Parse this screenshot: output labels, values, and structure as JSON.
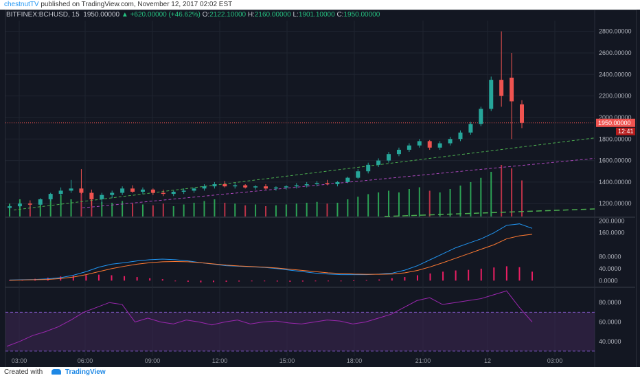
{
  "publication": {
    "author": "chestnutTV",
    "text": "published on TradingView.com, November 12, 2017 02:02 EST"
  },
  "header": {
    "symbol": "BITFINEX:BCHUSD, 15",
    "price": "1950.00000",
    "arrow": "▲",
    "change": "+620.00000 (+46.62%)",
    "o_label": "O:",
    "o_value": "2122.10000",
    "h_label": "H:",
    "h_value": "2160.00000",
    "l_label": "L:",
    "l_value": "1901.10000",
    "c_label": "C:",
    "c_value": "1950.00000"
  },
  "footer": {
    "created_with": "Created with",
    "brand": "TradingView"
  },
  "colors": {
    "up": "#26a69a",
    "down": "#ef5350",
    "vol_up": "#33c561",
    "vol_down": "#e53951",
    "macd_line": "#2196f3",
    "signal_line": "#ff7a32",
    "hist": "#e91e63",
    "rsi_line": "#9c27b0",
    "rsi_band": "#3b2450",
    "last_price_tag": "#ef5350"
  },
  "chart_data": [
    {
      "type": "candlestick",
      "title": "BITFINEX:BCHUSD, 15",
      "ylim": [
        1080,
        2900
      ],
      "yticks": [
        "1200.00000",
        "1400.00000",
        "1600.00000",
        "1800.00000",
        "2000.00000",
        "2200.00000",
        "2400.00000",
        "2600.00000",
        "2800.00000"
      ],
      "last_price_label": "1950.00000",
      "countdown_label": "12:41",
      "last_price": 1950,
      "candles": [
        [
          1160,
          1190,
          1140,
          1175
        ],
        [
          1175,
          1210,
          1165,
          1200
        ],
        [
          1200,
          1230,
          1180,
          1190
        ],
        [
          1190,
          1250,
          1180,
          1240
        ],
        [
          1240,
          1300,
          1220,
          1290
        ],
        [
          1290,
          1350,
          1270,
          1320
        ],
        [
          1320,
          1420,
          1300,
          1340
        ],
        [
          1340,
          1520,
          1290,
          1300
        ],
        [
          1300,
          1330,
          1180,
          1240
        ],
        [
          1240,
          1300,
          1200,
          1280
        ],
        [
          1280,
          1320,
          1250,
          1300
        ],
        [
          1300,
          1360,
          1280,
          1340
        ],
        [
          1340,
          1370,
          1300,
          1310
        ],
        [
          1310,
          1350,
          1290,
          1330
        ],
        [
          1330,
          1340,
          1280,
          1300
        ],
        [
          1300,
          1330,
          1270,
          1290
        ],
        [
          1290,
          1320,
          1270,
          1310
        ],
        [
          1310,
          1340,
          1290,
          1320
        ],
        [
          1320,
          1350,
          1300,
          1340
        ],
        [
          1340,
          1380,
          1320,
          1360
        ],
        [
          1360,
          1400,
          1340,
          1380
        ],
        [
          1380,
          1410,
          1350,
          1360
        ],
        [
          1360,
          1390,
          1340,
          1370
        ],
        [
          1370,
          1380,
          1340,
          1350
        ],
        [
          1350,
          1370,
          1330,
          1360
        ],
        [
          1360,
          1380,
          1330,
          1340
        ],
        [
          1340,
          1360,
          1320,
          1350
        ],
        [
          1350,
          1370,
          1330,
          1360
        ],
        [
          1360,
          1390,
          1340,
          1370
        ],
        [
          1370,
          1400,
          1350,
          1380
        ],
        [
          1380,
          1410,
          1360,
          1390
        ],
        [
          1390,
          1420,
          1370,
          1380
        ],
        [
          1380,
          1410,
          1360,
          1400
        ],
        [
          1400,
          1450,
          1390,
          1440
        ],
        [
          1440,
          1520,
          1430,
          1500
        ],
        [
          1500,
          1580,
          1480,
          1560
        ],
        [
          1560,
          1620,
          1540,
          1600
        ],
        [
          1600,
          1680,
          1580,
          1660
        ],
        [
          1660,
          1720,
          1640,
          1700
        ],
        [
          1700,
          1760,
          1680,
          1740
        ],
        [
          1740,
          1800,
          1720,
          1780
        ],
        [
          1780,
          1790,
          1700,
          1720
        ],
        [
          1720,
          1780,
          1700,
          1760
        ],
        [
          1760,
          1820,
          1740,
          1800
        ],
        [
          1800,
          1880,
          1780,
          1860
        ],
        [
          1860,
          1960,
          1840,
          1940
        ],
        [
          1940,
          2100,
          1920,
          2080
        ],
        [
          2080,
          2380,
          2060,
          2350
        ],
        [
          2350,
          2800,
          2100,
          2200
        ],
        [
          2370,
          2600,
          1800,
          2150
        ],
        [
          2122.1,
          2160,
          1901.1,
          1950
        ]
      ],
      "volume": [
        150,
        200,
        130,
        180,
        220,
        250,
        200,
        300,
        240,
        170,
        160,
        180,
        150,
        140,
        130,
        150,
        120,
        140,
        160,
        180,
        200,
        160,
        150,
        130,
        140,
        120,
        130,
        140,
        150,
        160,
        170,
        150,
        160,
        200,
        230,
        260,
        280,
        300,
        280,
        320,
        340,
        300,
        280,
        320,
        360,
        400,
        450,
        520,
        600,
        560,
        420
      ],
      "dashed_levels": [
        "rising trendlines",
        "magenta trendline"
      ]
    },
    {
      "type": "line",
      "title": "MACD",
      "ylim": [
        -20,
        210
      ],
      "yticks": [
        "0.0000",
        "40.0000",
        "80.0000",
        "160.0000",
        "200.0000"
      ],
      "series": [
        {
          "values": [
            2,
            3,
            4,
            6,
            10,
            18,
            30,
            45,
            55,
            60,
            66,
            70,
            72,
            70,
            66,
            60,
            55,
            50,
            48,
            46,
            44,
            40,
            35,
            30,
            25,
            22,
            20,
            20,
            20,
            22,
            25,
            35,
            50,
            70,
            90,
            110,
            125,
            140,
            160,
            185,
            190,
            175
          ]
        },
        {
          "values": [
            1,
            2,
            3,
            4,
            7,
            12,
            20,
            30,
            40,
            48,
            55,
            60,
            63,
            64,
            63,
            60,
            56,
            52,
            49,
            47,
            45,
            42,
            38,
            34,
            30,
            26,
            24,
            22,
            21,
            21,
            22,
            26,
            34,
            46,
            60,
            75,
            90,
            105,
            120,
            140,
            150,
            155
          ]
        }
      ],
      "histogram": [
        2,
        4,
        6,
        10,
        14,
        16,
        18,
        20,
        18,
        15,
        12,
        8,
        5,
        0,
        -4,
        -6,
        -5,
        -4,
        -3,
        -2,
        -2,
        -3,
        -4,
        -3,
        -2,
        -1,
        0,
        1,
        2,
        4,
        8,
        12,
        18,
        24,
        30,
        34,
        36,
        40,
        44,
        48,
        45,
        30
      ]
    },
    {
      "type": "line",
      "title": "RSI",
      "ylim": [
        25,
        95
      ],
      "yticks": [
        "40.0000",
        "60.0000",
        "80.0000"
      ],
      "band": [
        30,
        70
      ],
      "series": [
        {
          "values": [
            35,
            40,
            46,
            50,
            55,
            62,
            70,
            75,
            80,
            78,
            60,
            64,
            60,
            58,
            62,
            60,
            57,
            60,
            62,
            58,
            60,
            61,
            59,
            58,
            60,
            62,
            61,
            58,
            60,
            64,
            68,
            75,
            82,
            85,
            78,
            80,
            82,
            84,
            88,
            92,
            75,
            60
          ]
        }
      ]
    }
  ],
  "time_axis": [
    "03:00",
    "06:00",
    "09:00",
    "12:00",
    "15:00",
    "18:00",
    "21:00",
    "12",
    "03:00"
  ]
}
